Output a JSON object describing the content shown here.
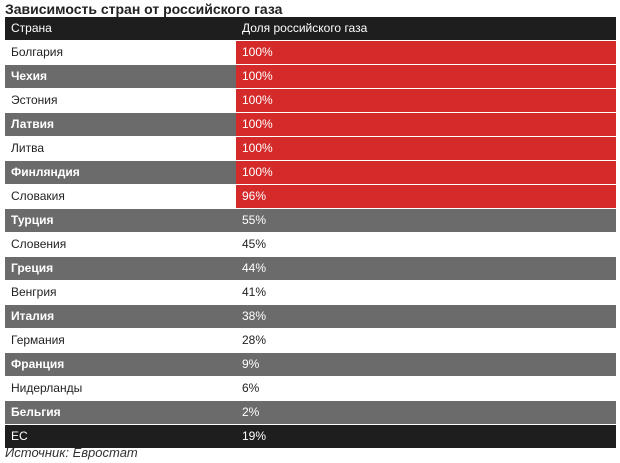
{
  "title": "Зависимость стран от российского газа",
  "source": "Источник: Евростат",
  "colors": {
    "header": "#1e1e1e",
    "dark_row": "#6b6b6b",
    "highlight": "#d42a2a"
  },
  "chart_data": {
    "type": "table",
    "title": "Зависимость стран от российского газа",
    "columns": [
      "Страна",
      "Доля российского газа"
    ],
    "rows": [
      {
        "country": "Болгария",
        "share": "100%",
        "value": 100
      },
      {
        "country": "Чехия",
        "share": "100%",
        "value": 100
      },
      {
        "country": "Эстония",
        "share": "100%",
        "value": 100
      },
      {
        "country": "Латвия",
        "share": "100%",
        "value": 100
      },
      {
        "country": "Литва",
        "share": "100%",
        "value": 100
      },
      {
        "country": "Финляндия",
        "share": "100%",
        "value": 100
      },
      {
        "country": "Словакия",
        "share": "96%",
        "value": 96
      },
      {
        "country": "Турция",
        "share": "55%",
        "value": 55
      },
      {
        "country": "Словения",
        "share": "45%",
        "value": 45
      },
      {
        "country": "Греция",
        "share": "44%",
        "value": 44
      },
      {
        "country": "Венгрия",
        "share": "41%",
        "value": 41
      },
      {
        "country": "Италия",
        "share": "38%",
        "value": 38
      },
      {
        "country": "Германия",
        "share": "28%",
        "value": 28
      },
      {
        "country": "Франция",
        "share": "9%",
        "value": 9
      },
      {
        "country": "Нидерланды",
        "share": "6%",
        "value": 6
      },
      {
        "country": "Бельгия",
        "share": "2%",
        "value": 2
      }
    ],
    "total": {
      "country": "ЕС",
      "share": "19%",
      "value": 19
    }
  }
}
